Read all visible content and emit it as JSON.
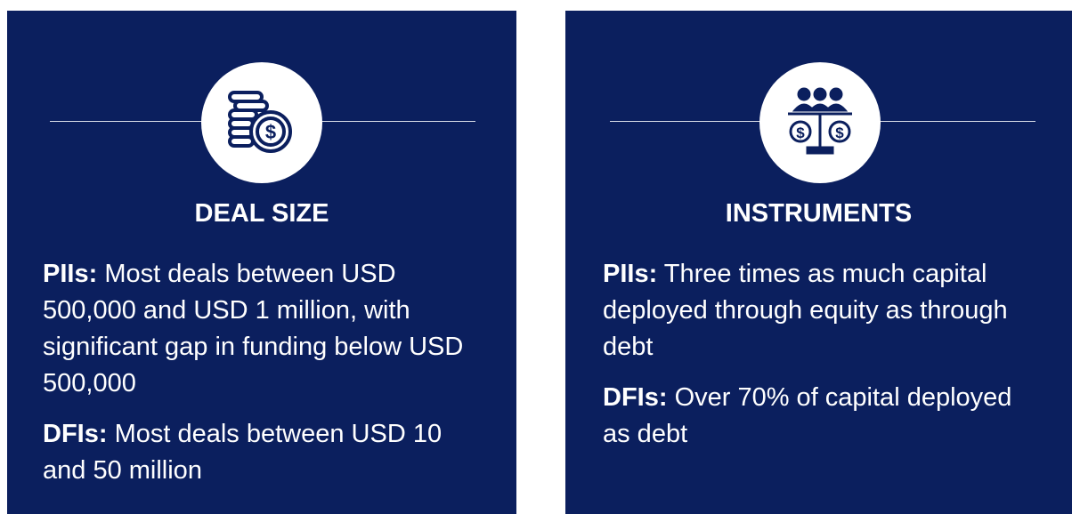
{
  "cards": [
    {
      "title": "DEAL SIZE",
      "items": [
        {
          "label": "PIIs:",
          "text": "Most deals between USD 500,000 and USD 1 million, with significant gap in funding below USD 500,000"
        },
        {
          "label": "DFIs:",
          "text": "Most deals between USD 10 and 50 million"
        }
      ]
    },
    {
      "title": "INSTRUMENTS",
      "items": [
        {
          "label": "PIIs:",
          "text": "Three times as much capital deployed through equity as through debt"
        },
        {
          "label": "DFIs:",
          "text": "Over 70% of capital deployed as debt"
        }
      ]
    }
  ]
}
